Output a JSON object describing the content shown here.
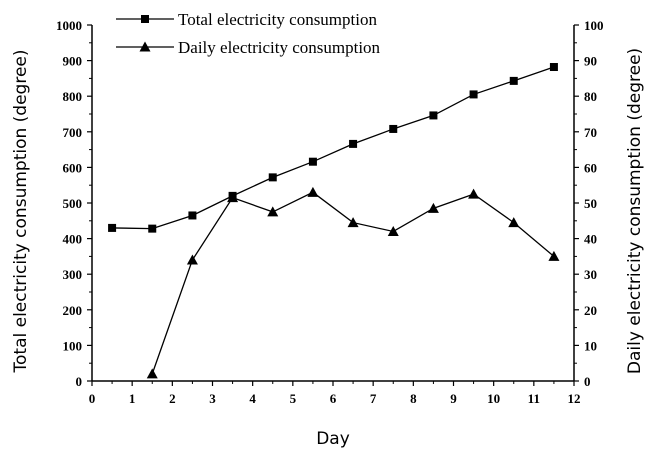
{
  "chart_data": {
    "type": "line",
    "xlabel": "Day",
    "ylabel_left": "Total electricity consumption (degree)",
    "ylabel_right": "Daily electricity consumption (degree)",
    "xlim": [
      0,
      12
    ],
    "ylim_left": [
      0,
      1000
    ],
    "ylim_right": [
      0,
      100
    ],
    "x_ticks": [
      0,
      1,
      2,
      3,
      4,
      5,
      6,
      7,
      8,
      9,
      10,
      11,
      12
    ],
    "y_left_ticks": [
      0,
      100,
      200,
      300,
      400,
      500,
      600,
      700,
      800,
      900,
      1000
    ],
    "y_right_ticks": [
      0,
      10,
      20,
      30,
      40,
      50,
      60,
      70,
      80,
      90,
      100
    ],
    "grid": false,
    "legend_position": "top-left",
    "series": [
      {
        "name": "Total electricity consumption",
        "axis": "left",
        "marker": "square",
        "color": "#000000",
        "points": [
          [
            0.5,
            430
          ],
          [
            1.5,
            428
          ],
          [
            2.5,
            465
          ],
          [
            3.5,
            520
          ],
          [
            4.5,
            572
          ],
          [
            5.5,
            616
          ],
          [
            6.5,
            666
          ],
          [
            7.5,
            708
          ],
          [
            8.5,
            746
          ],
          [
            9.5,
            805
          ],
          [
            10.5,
            843
          ],
          [
            11.5,
            882
          ]
        ]
      },
      {
        "name": "Daily electricity consumption",
        "axis": "right",
        "marker": "triangle",
        "color": "#000000",
        "points": [
          [
            1.5,
            2
          ],
          [
            2.5,
            34
          ],
          [
            3.5,
            51.5
          ],
          [
            4.5,
            47.5
          ],
          [
            5.5,
            53
          ],
          [
            6.5,
            44.5
          ],
          [
            7.5,
            42
          ],
          [
            8.5,
            48.5
          ],
          [
            9.5,
            52.5
          ],
          [
            10.5,
            44.5
          ],
          [
            11.5,
            35
          ]
        ]
      }
    ]
  }
}
